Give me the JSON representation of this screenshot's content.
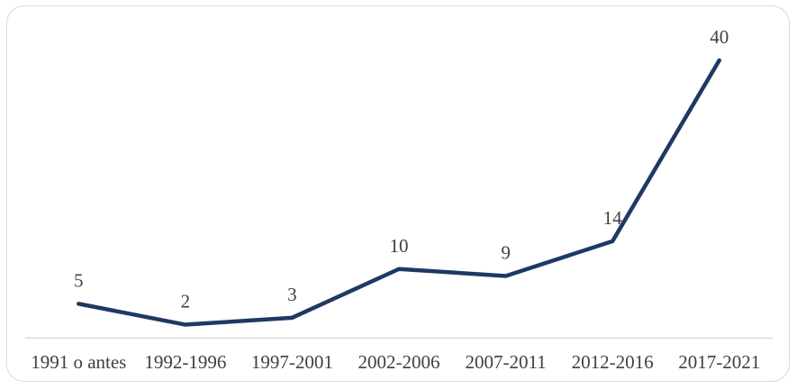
{
  "chart_data": {
    "type": "line",
    "categories": [
      "1991 o antes",
      "1992-1996",
      "1997-2001",
      "2002-2006",
      "2007-2011",
      "2012-2016",
      "2017-2021"
    ],
    "values": [
      5,
      2,
      3,
      10,
      9,
      14,
      40
    ],
    "data_labels": [
      "5",
      "2",
      "3",
      "10",
      "9",
      "14",
      "40"
    ],
    "title": "",
    "xlabel": "",
    "ylabel": "",
    "ylim": [
      0,
      45
    ],
    "grid": false,
    "legend": false,
    "y_axis_visible": false,
    "x_axis_visible": true,
    "colors": {
      "series_line": "#1F3864",
      "axis_line": "#D9D9D9",
      "label_text": "#404040",
      "frame_border": "#D9D9D9",
      "background": "#FFFFFF"
    }
  }
}
